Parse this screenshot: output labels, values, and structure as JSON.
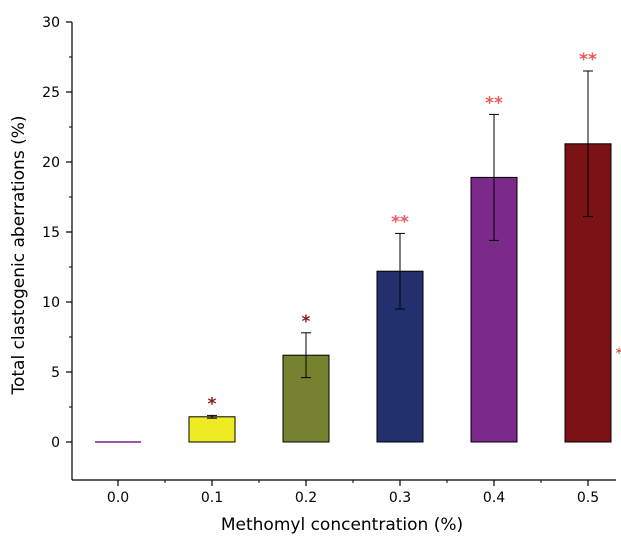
{
  "chart_data": {
    "type": "bar",
    "xlabel": "Methomyl concentration (%)",
    "ylabel": "Total clastogenic aberrations  (%)",
    "categories": [
      "0.0",
      "0.1",
      "0.2",
      "0.3",
      "0.4",
      "0.5"
    ],
    "values": [
      0.0,
      1.8,
      6.2,
      12.2,
      18.9,
      21.3
    ],
    "errors": [
      0.0,
      0.1,
      1.6,
      2.7,
      4.5,
      5.2
    ],
    "bar_colors": [
      "#9b59a8",
      "#eeeb24",
      "#778231",
      "#23306e",
      "#7b2a8c",
      "#7b1316"
    ],
    "significance": [
      "",
      "*",
      "*",
      "**",
      "**",
      "**"
    ],
    "significance_colors": [
      "",
      "#8b1a1a",
      "#8b1a1a",
      "#f05a5a",
      "#f05a5a",
      "#f05a5a"
    ],
    "extra_marker": {
      "text": "*",
      "color": "#c0392b"
    },
    "ylim": [
      -3,
      30
    ],
    "yticks": [
      0,
      5,
      10,
      15,
      20,
      25,
      30
    ],
    "grid": false,
    "legend": "none"
  }
}
